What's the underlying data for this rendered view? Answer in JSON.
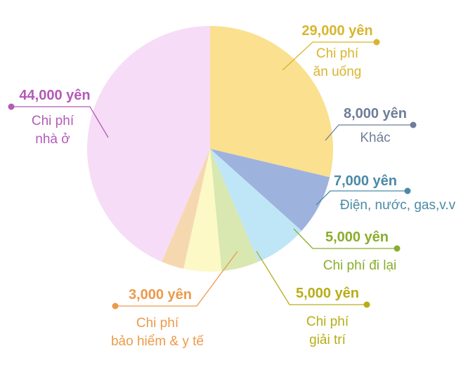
{
  "chart_data": {
    "type": "pie",
    "unit": "yên",
    "slices": [
      {
        "amount_label": "29,000 yên",
        "value": 29000,
        "name_lines": [
          "Chi phí",
          "ăn uống"
        ],
        "color": "#fae08f",
        "text_color": "#d9b52e"
      },
      {
        "amount_label": "8,000 yên",
        "value": 8000,
        "name_lines": [
          "Khác"
        ],
        "color": "#9eb2de",
        "text_color": "#6e7d9a"
      },
      {
        "amount_label": "7,000 yên",
        "value": 7000,
        "name_lines": [
          "Điện, nước, gas,v.v"
        ],
        "color": "#bfe6f6",
        "text_color": "#4a8aa6"
      },
      {
        "amount_label": "5,000 yên",
        "value": 5000,
        "name_lines": [
          "Chi phí đi lại"
        ],
        "color": "#d8e8b0",
        "text_color": "#8aad2c"
      },
      {
        "amount_label": "5,000 yên",
        "value": 5000,
        "name_lines": [
          "Chi phí",
          "giải trí"
        ],
        "color": "#fcf9c6",
        "text_color": "#b8ad18"
      },
      {
        "amount_label": "3,000 yên",
        "value": 3000,
        "name_lines": [
          "Chi phí",
          "bảo hiểm & y tế"
        ],
        "color": "#f6d8b0",
        "text_color": "#ec9a4a"
      },
      {
        "amount_label": "44,000 yên",
        "value": 44000,
        "name_lines": [
          "Chi phí",
          "nhà ở"
        ],
        "color": "#f6dcf6",
        "text_color": "#b35ab8"
      }
    ]
  }
}
